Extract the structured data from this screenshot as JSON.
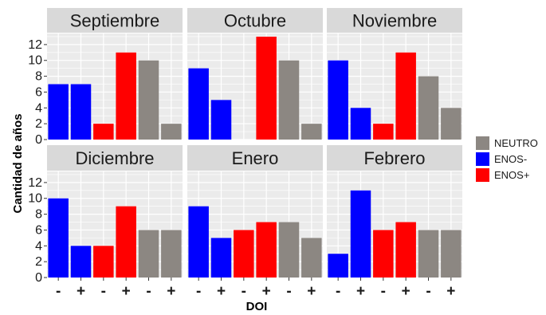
{
  "chart_data": {
    "type": "bar",
    "xlabel": "DOI",
    "ylabel": "Cantidad de años",
    "ylim": [
      0,
      13.4
    ],
    "yticks": [
      0,
      2,
      4,
      6,
      8,
      10,
      12
    ],
    "categories": [
      "-",
      "+",
      "-",
      "+",
      "-",
      "+"
    ],
    "bar_fase": [
      "ENOS-",
      "ENOS-",
      "ENOS+",
      "ENOS+",
      "NEUTRO",
      "NEUTRO"
    ],
    "legend": {
      "position": "right",
      "items": [
        {
          "label": "NEUTRO",
          "color": "#8c8782"
        },
        {
          "label": "ENOS-",
          "color": "#0000ff"
        },
        {
          "label": "ENOS+",
          "color": "#ff0000"
        }
      ]
    },
    "grid": true,
    "panels": [
      {
        "title": "Septiembre",
        "values": [
          7,
          7,
          2,
          11,
          10,
          2
        ]
      },
      {
        "title": "Octubre",
        "values": [
          9,
          5,
          0,
          13,
          10,
          2
        ]
      },
      {
        "title": "Noviembre",
        "values": [
          10,
          4,
          2,
          11,
          8,
          4
        ]
      },
      {
        "title": "Diciembre",
        "values": [
          10,
          4,
          4,
          9,
          6,
          6
        ]
      },
      {
        "title": "Enero",
        "values": [
          9,
          5,
          6,
          7,
          7,
          5
        ]
      },
      {
        "title": "Febrero",
        "values": [
          3,
          11,
          6,
          7,
          6,
          6
        ]
      }
    ]
  },
  "colors": {
    "panel_bg": "#ebebeb",
    "strip_bg": "#d9d9d9",
    "grid": "#ffffff"
  }
}
